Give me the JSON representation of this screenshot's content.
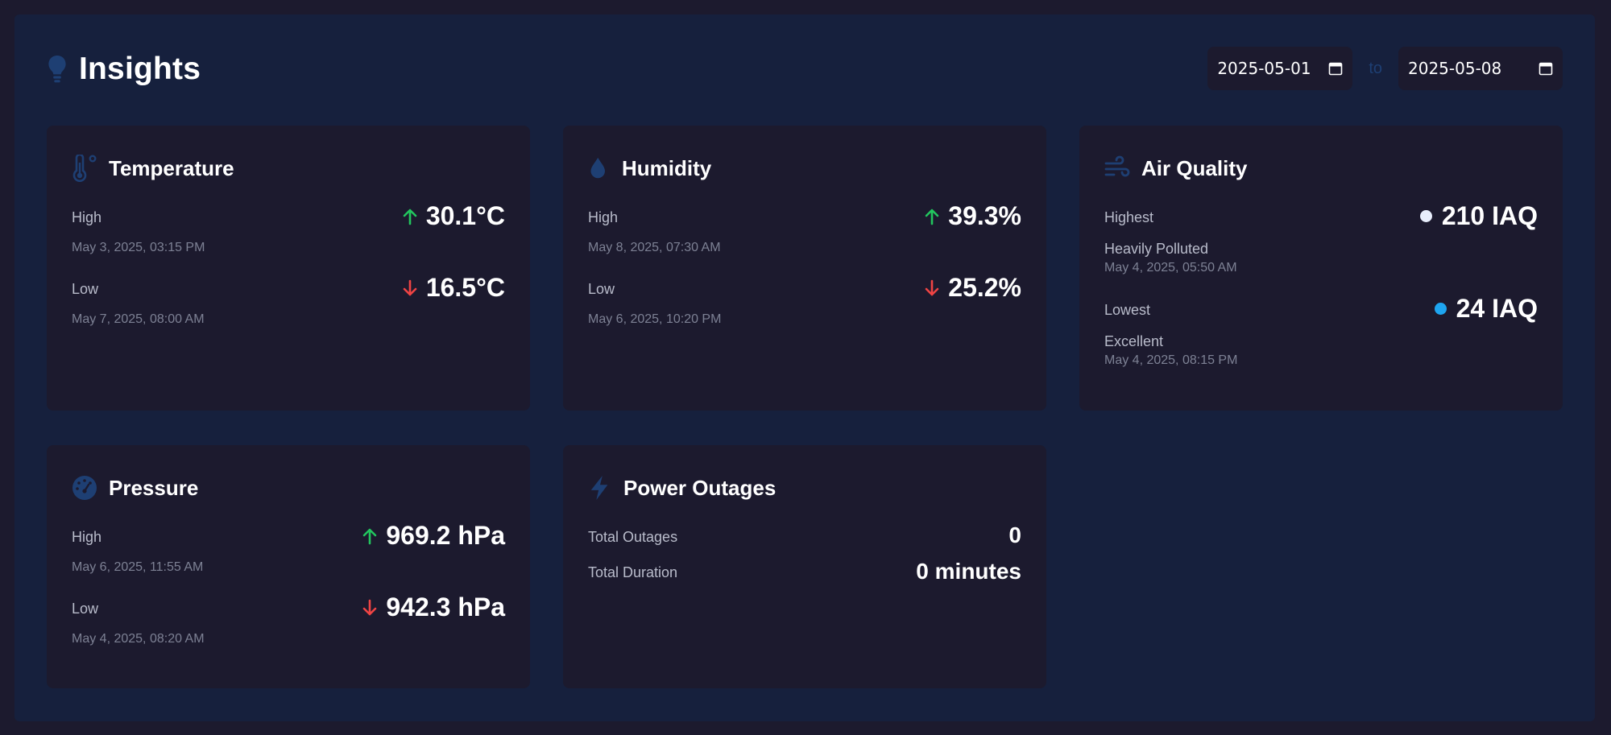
{
  "header": {
    "title": "Insights",
    "start_date": "2025-05-01",
    "end_date": "2025-05-08",
    "to_label": "to"
  },
  "colors": {
    "up": "#22c55e",
    "down": "#ef4444",
    "icon": "#1e3f73",
    "aq_high": "#e8eefc",
    "aq_low": "#1ea5f0"
  },
  "temperature": {
    "title": "Temperature",
    "icon": "thermometer-icon",
    "high_label": "High",
    "high_value": "30.1°C",
    "high_date": "May 3, 2025, 03:15 PM",
    "low_label": "Low",
    "low_value": "16.5°C",
    "low_date": "May 7, 2025, 08:00 AM"
  },
  "humidity": {
    "title": "Humidity",
    "icon": "droplet-icon",
    "high_label": "High",
    "high_value": "39.3%",
    "high_date": "May 8, 2025, 07:30 AM",
    "low_label": "Low",
    "low_value": "25.2%",
    "low_date": "May 6, 2025, 10:20 PM"
  },
  "air_quality": {
    "title": "Air Quality",
    "icon": "wind-icon",
    "high_label": "Highest",
    "high_value": "210 IAQ",
    "high_status": "Heavily Polluted",
    "high_date": "May 4, 2025, 05:50 AM",
    "low_label": "Lowest",
    "low_value": "24 IAQ",
    "low_status": "Excellent",
    "low_date": "May 4, 2025, 08:15 PM"
  },
  "pressure": {
    "title": "Pressure",
    "icon": "gauge-icon",
    "high_label": "High",
    "high_value": "969.2 hPa",
    "high_date": "May 6, 2025, 11:55 AM",
    "low_label": "Low",
    "low_value": "942.3 hPa",
    "low_date": "May 4, 2025, 08:20 AM"
  },
  "power_outages": {
    "title": "Power Outages",
    "icon": "bolt-icon",
    "total_label": "Total Outages",
    "total_value": "0",
    "duration_label": "Total Duration",
    "duration_value": "0 minutes"
  }
}
